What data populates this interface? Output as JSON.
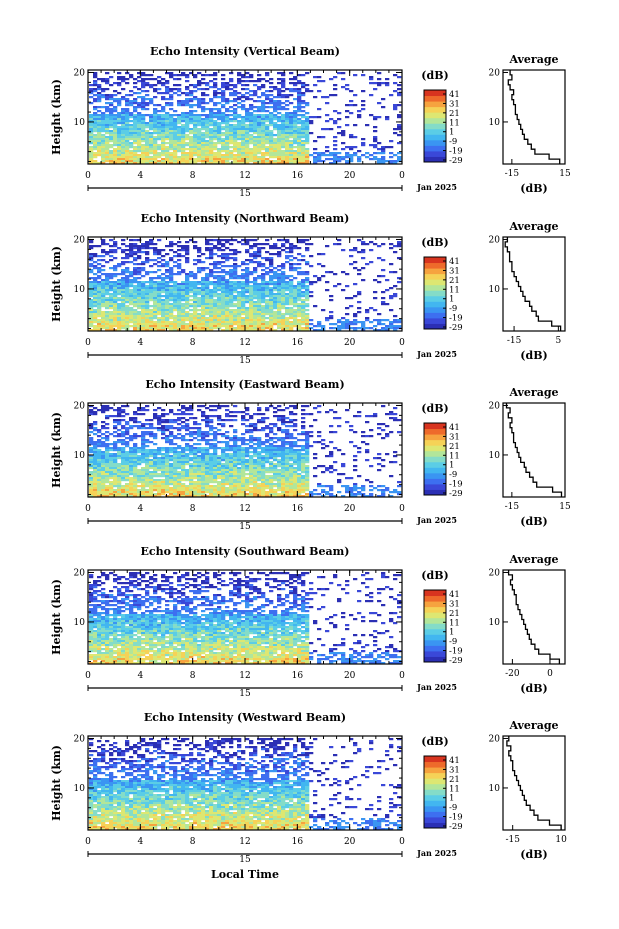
{
  "figure": {
    "date_label": "Jan 2025",
    "x_axis_title": "Local Time",
    "day_label": "15"
  },
  "chart_data": [
    {
      "type": "heatmap",
      "title": "Echo Intensity (Vertical Beam)",
      "ylabel": "Height (km)",
      "xlabel": "Local Time",
      "x_ticks": [
        "0",
        "4",
        "8",
        "12",
        "16",
        "20",
        "0"
      ],
      "xlim": [
        0,
        24
      ],
      "y_ticks": [
        "10",
        "20"
      ],
      "ylim": [
        1.5,
        20.5
      ],
      "colorbar": {
        "label": "(dB)",
        "ticks": [
          "41",
          "31",
          "21",
          "11",
          "1",
          "-9",
          "-19",
          "-29"
        ],
        "range": [
          -29,
          41
        ]
      },
      "data_coverage_end_hour": 16.8,
      "average_profile": {
        "title": "Average",
        "xlabel": "(dB)",
        "x_ticks": [
          "-15",
          "15"
        ],
        "xlim": [
          -20,
          15
        ],
        "heights_km": [
          2,
          3,
          4,
          5,
          6,
          7,
          8,
          9,
          10,
          11,
          12,
          13,
          14,
          15,
          16,
          17,
          18,
          19,
          20
        ],
        "values_db": [
          12,
          6,
          -2,
          -4,
          -6,
          -8,
          -9,
          -10,
          -11,
          -12,
          -13,
          -13,
          -14,
          -15,
          -14,
          -16,
          -17,
          -15,
          -16
        ]
      }
    },
    {
      "type": "heatmap",
      "title": "Echo Intensity (Northward Beam)",
      "ylabel": "Height (km)",
      "xlabel": "Local Time",
      "x_ticks": [
        "0",
        "4",
        "8",
        "12",
        "16",
        "20",
        "0"
      ],
      "xlim": [
        0,
        24
      ],
      "y_ticks": [
        "10",
        "20"
      ],
      "ylim": [
        1.5,
        20.5
      ],
      "colorbar": {
        "label": "(dB)",
        "ticks": [
          "41",
          "31",
          "21",
          "11",
          "1",
          "-9",
          "-19",
          "-29"
        ],
        "range": [
          -29,
          41
        ]
      },
      "data_coverage_end_hour": 16.6,
      "average_profile": {
        "title": "Average",
        "xlabel": "(dB)",
        "x_ticks": [
          "-15",
          "5"
        ],
        "xlim": [
          -20,
          8
        ],
        "heights_km": [
          2,
          3,
          4,
          5,
          6,
          7,
          8,
          9,
          10,
          11,
          12,
          13,
          14,
          15,
          16,
          17,
          18,
          19,
          20
        ],
        "values_db": [
          6,
          2,
          -4,
          -5,
          -7,
          -8,
          -10,
          -11,
          -12,
          -13,
          -14,
          -15,
          -16,
          -16,
          -17,
          -17,
          -18,
          -19,
          -18
        ]
      }
    },
    {
      "type": "heatmap",
      "title": "Echo Intensity (Eastward Beam)",
      "ylabel": "Height (km)",
      "xlabel": "Local Time",
      "x_ticks": [
        "0",
        "4",
        "8",
        "12",
        "16",
        "20",
        "0"
      ],
      "xlim": [
        0,
        24
      ],
      "y_ticks": [
        "10",
        "20"
      ],
      "ylim": [
        1.5,
        20.5
      ],
      "colorbar": {
        "label": "(dB)",
        "ticks": [
          "41",
          "31",
          "21",
          "11",
          "1",
          "-9",
          "-19",
          "-29"
        ],
        "range": [
          -29,
          41
        ]
      },
      "data_coverage_end_hour": 16.7,
      "average_profile": {
        "title": "Average",
        "xlabel": "(dB)",
        "x_ticks": [
          "-15",
          "15"
        ],
        "xlim": [
          -20,
          15
        ],
        "heights_km": [
          2,
          3,
          4,
          5,
          6,
          7,
          8,
          9,
          10,
          11,
          12,
          13,
          14,
          15,
          16,
          17,
          18,
          19,
          20
        ],
        "values_db": [
          13,
          8,
          -1,
          -3,
          -5,
          -7,
          -8,
          -10,
          -11,
          -12,
          -13,
          -14,
          -14,
          -15,
          -16,
          -15,
          -17,
          -16,
          -18
        ]
      }
    },
    {
      "type": "heatmap",
      "title": "Echo Intensity (Southward Beam)",
      "ylabel": "Height (km)",
      "xlabel": "Local Time",
      "x_ticks": [
        "0",
        "4",
        "8",
        "12",
        "16",
        "20",
        "0"
      ],
      "xlim": [
        0,
        24
      ],
      "y_ticks": [
        "10",
        "20"
      ],
      "ylim": [
        1.5,
        20.5
      ],
      "colorbar": {
        "label": "(dB)",
        "ticks": [
          "41",
          "31",
          "21",
          "11",
          "1",
          "-9",
          "-19",
          "-29"
        ],
        "range": [
          -29,
          41
        ]
      },
      "data_coverage_end_hour": 16.6,
      "average_profile": {
        "title": "Average",
        "xlabel": "(dB)",
        "x_ticks": [
          "-20",
          "0"
        ],
        "xlim": [
          -25,
          8
        ],
        "heights_km": [
          2,
          3,
          4,
          5,
          6,
          7,
          8,
          9,
          10,
          11,
          12,
          13,
          14,
          15,
          16,
          17,
          18,
          19,
          20
        ],
        "values_db": [
          5,
          0,
          -6,
          -8,
          -10,
          -11,
          -12,
          -13,
          -14,
          -15,
          -16,
          -17,
          -18,
          -18,
          -19,
          -20,
          -21,
          -20,
          -22
        ]
      }
    },
    {
      "type": "heatmap",
      "title": "Echo Intensity (Westward Beam)",
      "ylabel": "Height (km)",
      "xlabel": "Local Time",
      "x_ticks": [
        "0",
        "4",
        "8",
        "12",
        "16",
        "20",
        "0"
      ],
      "xlim": [
        0,
        24
      ],
      "y_ticks": [
        "10",
        "20"
      ],
      "ylim": [
        1.5,
        20.5
      ],
      "colorbar": {
        "label": "(dB)",
        "ticks": [
          "41",
          "31",
          "21",
          "11",
          "1",
          "-9",
          "-19",
          "-29"
        ],
        "range": [
          -29,
          41
        ]
      },
      "data_coverage_end_hour": 16.6,
      "average_profile": {
        "title": "Average",
        "xlabel": "(dB)",
        "x_ticks": [
          "-15",
          "10"
        ],
        "xlim": [
          -20,
          12
        ],
        "heights_km": [
          2,
          3,
          4,
          5,
          6,
          7,
          8,
          9,
          10,
          11,
          12,
          13,
          14,
          15,
          16,
          17,
          18,
          19,
          20
        ],
        "values_db": [
          10,
          4,
          -2,
          -4,
          -6,
          -8,
          -9,
          -10,
          -11,
          -12,
          -13,
          -14,
          -15,
          -15,
          -16,
          -17,
          -16,
          -18,
          -17
        ]
      }
    }
  ],
  "colors": {
    "colormap": [
      "#2b2fb4",
      "#3a48d8",
      "#3d6ff0",
      "#3a95f2",
      "#42b6f0",
      "#5bcde6",
      "#84dcc8",
      "#b2e69a",
      "#dde772",
      "#f5d257",
      "#f6a33f",
      "#ee6a2b",
      "#d8341f"
    ]
  }
}
